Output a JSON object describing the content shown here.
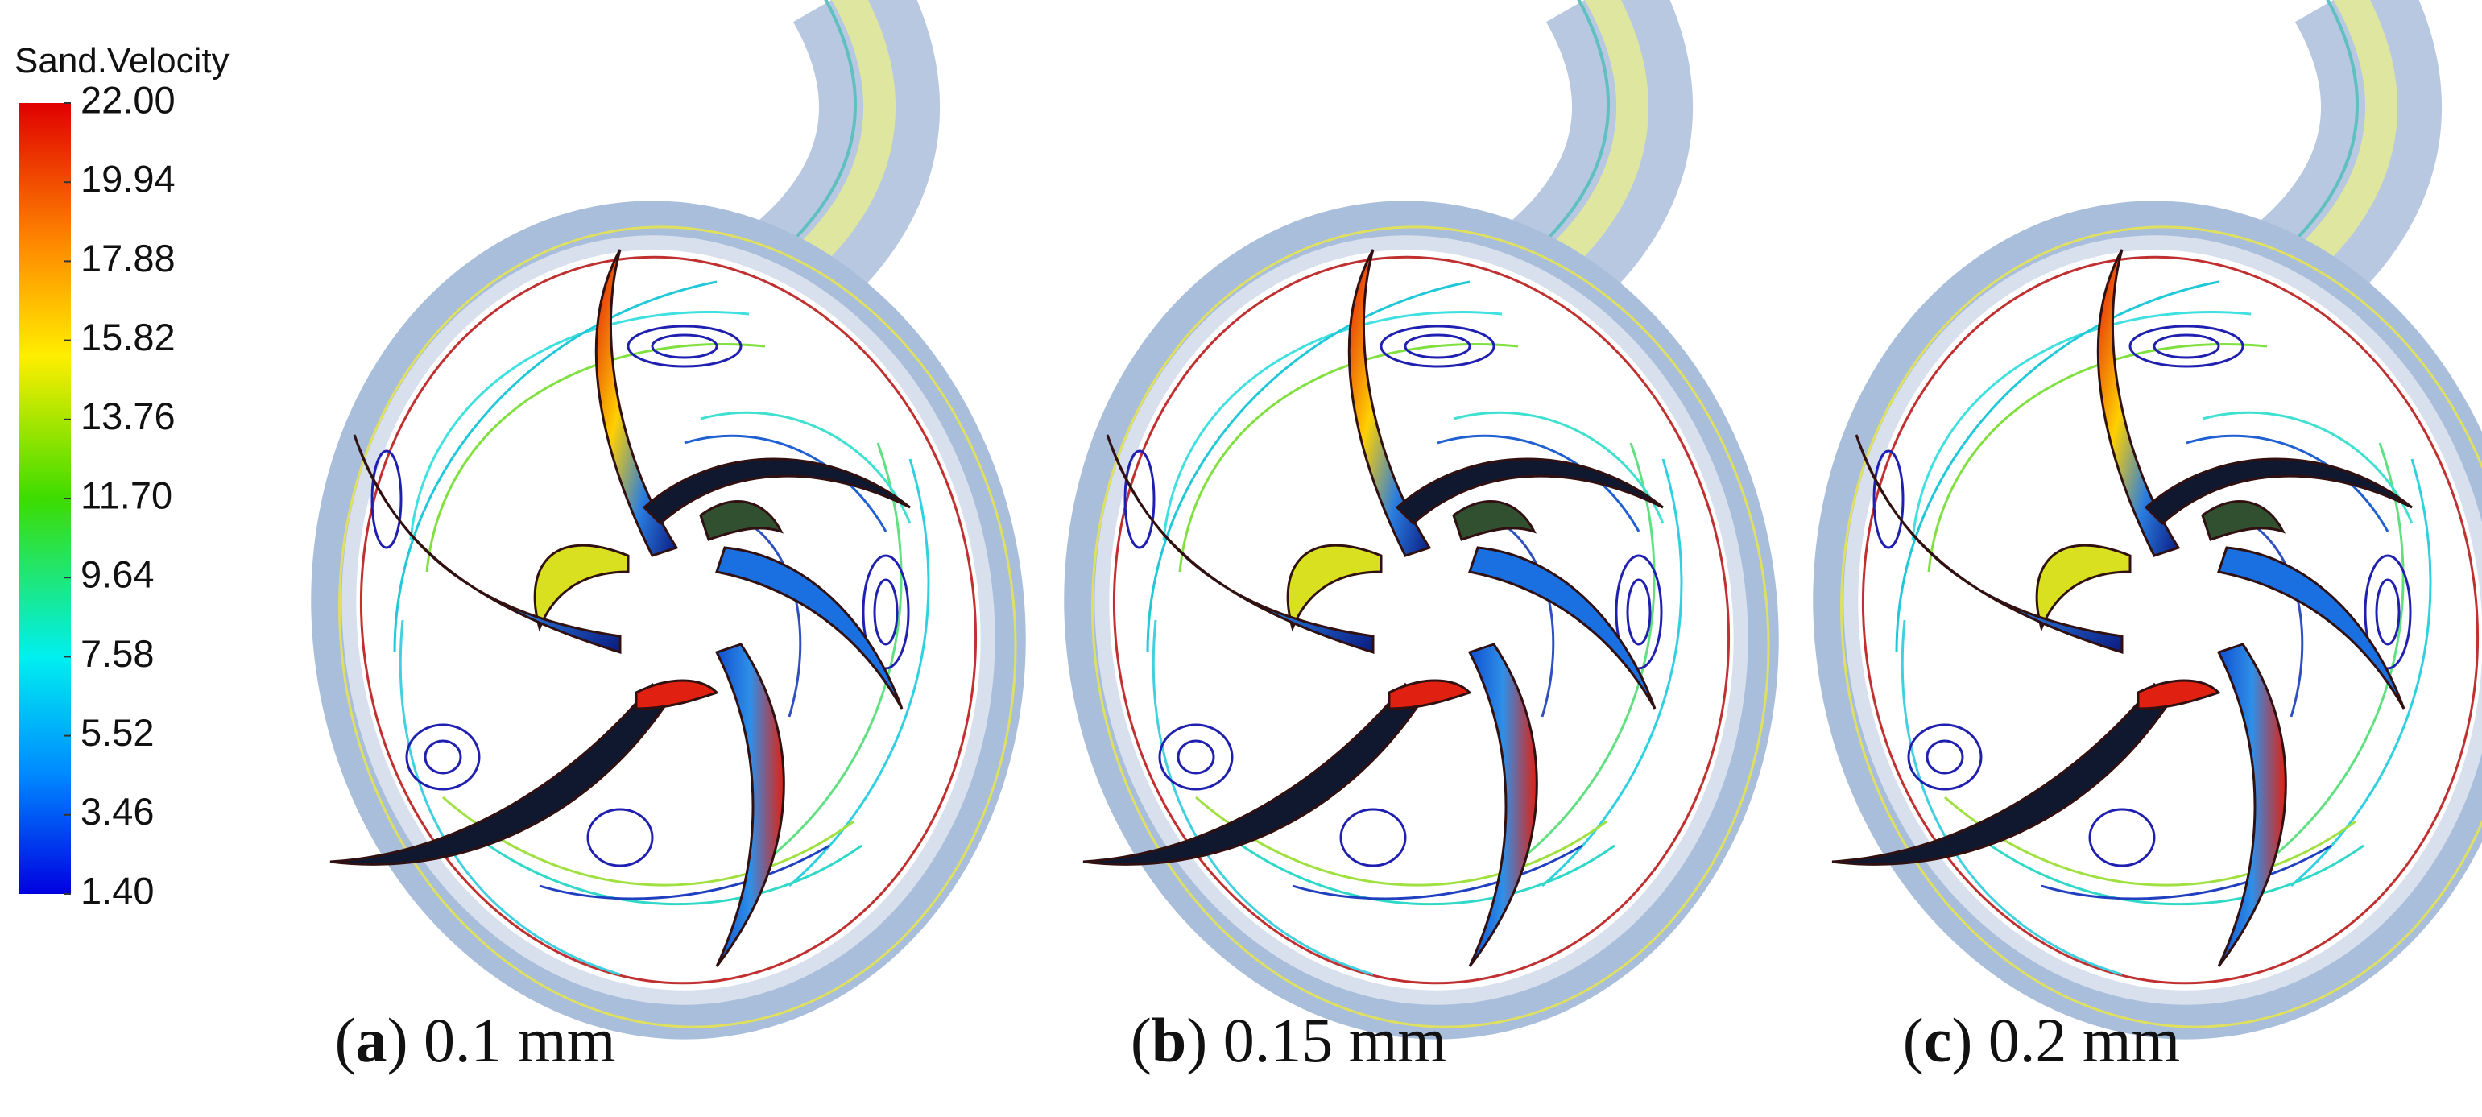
{
  "colorbar": {
    "title": "Sand.Velocity",
    "labels": [
      "22.00",
      "19.94",
      "17.88",
      "15.82",
      "13.76",
      "11.70",
      "9.64",
      "7.58",
      "5.52",
      "3.46",
      "1.40"
    ]
  },
  "panels": [
    {
      "caption": [
        "(",
        "a",
        ") 0.1 mm"
      ]
    },
    {
      "caption": [
        "(",
        "b",
        ") 0.15 mm"
      ]
    },
    {
      "caption": [
        "(",
        "c",
        ") 0.2 mm"
      ]
    }
  ]
}
